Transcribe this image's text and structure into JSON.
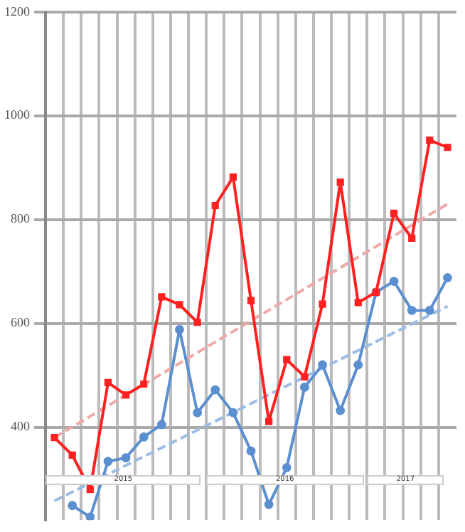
{
  "chart_data": {
    "type": "line",
    "categories": [
      null,
      null,
      null,
      null,
      null,
      null,
      null,
      null,
      null,
      null,
      null,
      null,
      null,
      null,
      null,
      null,
      null,
      null,
      null,
      null,
      null,
      null,
      null
    ],
    "series": [
      {
        "color": "#ff2020",
        "marker": "square",
        "values": [
          380,
          346,
          280,
          486,
          462,
          483,
          651,
          636,
          602,
          827,
          882,
          644,
          411,
          530,
          497,
          637,
          872,
          640,
          660,
          812,
          764,
          953,
          939
        ]
      },
      {
        "color": "#5b8fd0",
        "marker": "circle",
        "values": [
          null,
          249,
          227,
          334,
          341,
          381,
          405,
          588,
          428,
          472,
          428,
          354,
          251,
          322,
          477,
          520,
          432,
          520,
          660,
          681,
          625,
          625,
          688
        ]
      },
      {
        "color": "#f0a8a8",
        "marker": "none",
        "line_style": "dashed",
        "values": [
          380,
          null,
          null,
          null,
          null,
          null,
          null,
          null,
          null,
          null,
          null,
          null,
          null,
          null,
          null,
          null,
          null,
          null,
          null,
          null,
          null,
          null,
          830
        ]
      },
      {
        "color": "#9cbce6",
        "marker": "none",
        "line_style": "dashed",
        "values": [
          258,
          null,
          null,
          null,
          null,
          null,
          null,
          null,
          null,
          null,
          null,
          null,
          null,
          null,
          null,
          null,
          null,
          null,
          null,
          null,
          null,
          null,
          633
        ]
      }
    ],
    "ylim": [
      221,
      1200
    ],
    "yticks": [
      400,
      600,
      800,
      1000,
      1200
    ],
    "grid": true,
    "legend": false,
    "annotations": [
      "2015",
      "2016",
      "2017"
    ]
  }
}
